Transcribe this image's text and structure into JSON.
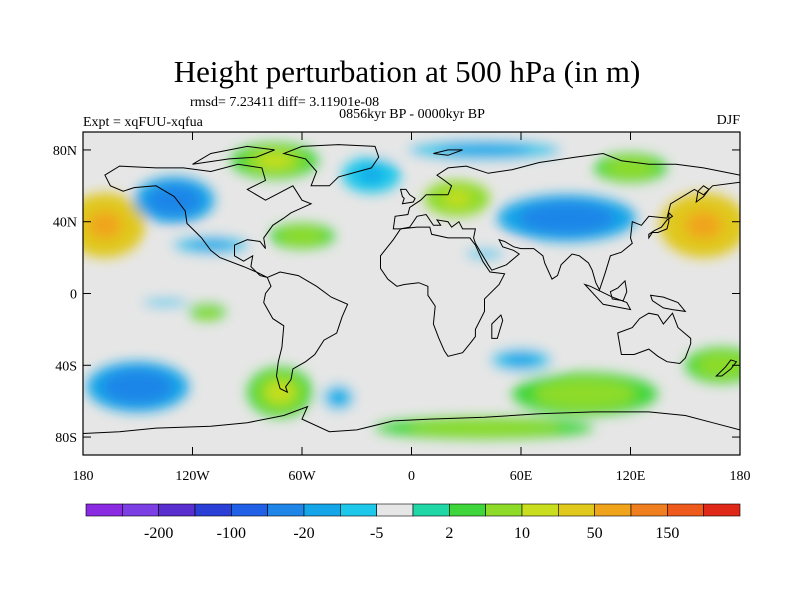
{
  "title": "Height perturbation at 500 hPa (in m)",
  "stats": "rmsd= 7.23411 diff= 3.11901e-08",
  "experiment": "Expt = xqFUU-xqfua",
  "period": "0856kyr BP - 0000kyr BP",
  "season": "DJF",
  "map": {
    "projection": "cylindrical-equidistant",
    "lon_range": [
      -180,
      180
    ],
    "lat_range": [
      -90,
      90
    ],
    "x_ticks": [
      {
        "value": -180,
        "label": "180"
      },
      {
        "value": -120,
        "label": "120W"
      },
      {
        "value": -60,
        "label": "60W"
      },
      {
        "value": 0,
        "label": "0"
      },
      {
        "value": 60,
        "label": "60E"
      },
      {
        "value": 120,
        "label": "120E"
      },
      {
        "value": 180,
        "label": "180"
      }
    ],
    "y_ticks": [
      {
        "value": 80,
        "label": "80N"
      },
      {
        "value": 40,
        "label": "40N"
      },
      {
        "value": 0,
        "label": "0"
      },
      {
        "value": -40,
        "label": "40S"
      },
      {
        "value": -80,
        "label": "80S"
      }
    ],
    "missing_color": "#e6e6e6",
    "features": [
      {
        "name": "north-pacific-positive",
        "lon": -168,
        "lat": 38,
        "rlon": 22,
        "rlat": 18,
        "value": 60
      },
      {
        "name": "alaska-negative",
        "lon": -130,
        "lat": 52,
        "rlon": 22,
        "rlat": 13,
        "value": -40
      },
      {
        "name": "west-pacific-positive",
        "lon": 160,
        "lat": 38,
        "rlon": 24,
        "rlat": 18,
        "value": 60
      },
      {
        "name": "north-atlantic-positive",
        "lon": 25,
        "lat": 53,
        "rlon": 18,
        "rlat": 10,
        "value": 15
      },
      {
        "name": "eurasia-negative",
        "lon": 85,
        "lat": 42,
        "rlon": 38,
        "rlat": 13,
        "value": -40
      },
      {
        "name": "arctic-negative",
        "lon": 40,
        "lat": 80,
        "rlon": 60,
        "rlat": 8,
        "value": -12
      },
      {
        "name": "canada-positive",
        "lon": -75,
        "lat": 74,
        "rlon": 24,
        "rlat": 10,
        "value": 12
      },
      {
        "name": "north-atlantic-negative",
        "lon": -22,
        "lat": 66,
        "rlon": 16,
        "rlat": 10,
        "value": -15
      },
      {
        "name": "siberia-positive",
        "lon": 120,
        "lat": 70,
        "rlon": 20,
        "rlat": 8,
        "value": 10
      },
      {
        "name": "subtropical-pacific-negative",
        "lon": -110,
        "lat": 27,
        "rlon": 30,
        "rlat": 7,
        "value": -10
      },
      {
        "name": "central-atlantic-positive",
        "lon": -60,
        "lat": 32,
        "rlon": 18,
        "rlat": 7,
        "value": 8
      },
      {
        "name": "north-africa-negative",
        "lon": 40,
        "lat": 22,
        "rlon": 25,
        "rlat": 6,
        "value": -6
      },
      {
        "name": "south-pacific-negative",
        "lon": -150,
        "lat": -52,
        "rlon": 28,
        "rlat": 14,
        "value": -40
      },
      {
        "name": "south-america-positive",
        "lon": -72,
        "lat": -55,
        "rlon": 18,
        "rlat": 14,
        "value": 12
      },
      {
        "name": "south-atlantic-negative",
        "lon": -40,
        "lat": -58,
        "rlon": 12,
        "rlat": 10,
        "value": -12
      },
      {
        "name": "south-africa-negative",
        "lon": 60,
        "lat": -37,
        "rlon": 24,
        "rlat": 9,
        "value": -12
      },
      {
        "name": "indian-ocean-positive",
        "lon": 95,
        "lat": -56,
        "rlon": 40,
        "rlat": 12,
        "value": 10
      },
      {
        "name": "tasman-positive",
        "lon": 170,
        "lat": -40,
        "rlon": 20,
        "rlat": 10,
        "value": 8
      },
      {
        "name": "tropical-pacific-negative",
        "lon": -135,
        "lat": -5,
        "rlon": 30,
        "rlat": 5,
        "value": -6
      },
      {
        "name": "east-pacific-positive",
        "lon": -112,
        "lat": -10,
        "rlon": 10,
        "rlat": 5,
        "value": 8
      },
      {
        "name": "southern-ocean-positive",
        "lon": 40,
        "lat": -75,
        "rlon": 60,
        "rlat": 6,
        "value": 8
      }
    ]
  },
  "colorbar": {
    "colors": [
      "#8a2be2",
      "#7b3fe4",
      "#5a2fd0",
      "#2a3fd6",
      "#1f60e6",
      "#1f86e8",
      "#14a6e8",
      "#1ec8ea",
      "#e6e6e6",
      "#20d7a6",
      "#3fd63b",
      "#8edb2a",
      "#c8de1e",
      "#e0c81c",
      "#f0a41c",
      "#f07f20",
      "#ee5a1c",
      "#e02818"
    ],
    "labels": [
      "-200",
      "-100",
      "-20",
      "-5",
      "2",
      "10",
      "50",
      "150"
    ]
  }
}
